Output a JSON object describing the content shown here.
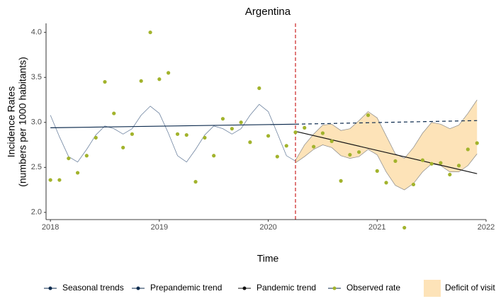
{
  "chart_data": {
    "type": "line",
    "title": "Argentina",
    "x_label": "Time",
    "y_label": [
      "Incidence Rates",
      "(numbers per 1000 habitants)"
    ],
    "xlim": [
      2017.96,
      2022.0
    ],
    "ylim": [
      1.92,
      4.1
    ],
    "xticks": [
      2018,
      2019,
      2020,
      2021,
      2022
    ],
    "yticks": [
      {
        "value": 2.0,
        "label": "2.0"
      },
      2.5,
      {
        "value": 3.0,
        "label": "3.0"
      },
      3.5,
      {
        "value": 4.0,
        "label": "4.0"
      }
    ],
    "grid": false,
    "vline": {
      "x": 2020.25,
      "color": "#cc2222"
    },
    "series": [
      {
        "name": "Seasonal trends",
        "type": "line",
        "color": "#6f84a0",
        "legend_color": "#0d2b4e",
        "x": [
          2018.0,
          2018.083,
          2018.167,
          2018.25,
          2018.333,
          2018.417,
          2018.5,
          2018.583,
          2018.667,
          2018.75,
          2018.833,
          2018.917,
          2019.0,
          2019.083,
          2019.167,
          2019.25,
          2019.333,
          2019.417,
          2019.5,
          2019.583,
          2019.667,
          2019.75,
          2019.833,
          2019.917,
          2020.0,
          2020.083,
          2020.167,
          2020.25
        ],
        "values": [
          3.08,
          2.84,
          2.62,
          2.56,
          2.7,
          2.86,
          2.96,
          2.93,
          2.87,
          2.93,
          3.08,
          3.18,
          3.1,
          2.88,
          2.63,
          2.56,
          2.7,
          2.86,
          2.96,
          2.93,
          2.87,
          2.93,
          3.08,
          3.2,
          3.12,
          2.88,
          2.63,
          2.57
        ]
      },
      {
        "name": "Prepandemic trend",
        "type": "line",
        "color": "#0d2b4e",
        "dash_after_x": 2020.25,
        "x": [
          2018.0,
          2020.25,
          2021.917
        ],
        "values": [
          2.94,
          2.98,
          3.02
        ]
      },
      {
        "name": "Pandemic trend",
        "type": "line",
        "color": "#111111",
        "x": [
          2020.25,
          2021.917
        ],
        "values": [
          2.9,
          2.43
        ]
      },
      {
        "name": "Observed rate",
        "type": "scatter",
        "color": "#a2b32c",
        "legend_color": "#0d2b4e",
        "x": [
          2018.0,
          2018.083,
          2018.167,
          2018.25,
          2018.333,
          2018.417,
          2018.5,
          2018.583,
          2018.667,
          2018.75,
          2018.833,
          2018.917,
          2019.0,
          2019.083,
          2019.167,
          2019.25,
          2019.333,
          2019.417,
          2019.5,
          2019.583,
          2019.667,
          2019.75,
          2019.833,
          2019.917,
          2020.0,
          2020.083,
          2020.167,
          2020.25,
          2020.333,
          2020.417,
          2020.5,
          2020.583,
          2020.667,
          2020.75,
          2020.833,
          2020.917,
          2021.0,
          2021.083,
          2021.167,
          2021.25,
          2021.333,
          2021.417,
          2021.5,
          2021.583,
          2021.667,
          2021.75,
          2021.833,
          2021.917
        ],
        "values": [
          2.36,
          2.36,
          2.6,
          2.44,
          2.63,
          2.83,
          3.45,
          3.1,
          2.72,
          2.87,
          3.46,
          4.0,
          3.48,
          3.55,
          2.87,
          2.86,
          2.34,
          2.83,
          2.63,
          3.04,
          2.93,
          3.0,
          2.78,
          3.38,
          2.85,
          2.62,
          2.74,
          2.89,
          2.94,
          2.73,
          2.88,
          2.79,
          2.35,
          2.64,
          2.67,
          3.08,
          2.46,
          2.33,
          2.57,
          1.83,
          2.31,
          2.58,
          2.54,
          2.55,
          2.42,
          2.52,
          2.7,
          2.77
        ]
      }
    ],
    "band": {
      "name": "Deficit of visit",
      "color": "#fde3b8",
      "edge_color": "#8a8a8a",
      "x": [
        2020.25,
        2020.333,
        2020.417,
        2020.5,
        2020.583,
        2020.667,
        2020.75,
        2020.833,
        2020.917,
        2021.0,
        2021.083,
        2021.167,
        2021.25,
        2021.333,
        2021.417,
        2021.5,
        2021.583,
        2021.667,
        2021.75,
        2021.833,
        2021.917
      ],
      "upper": [
        2.58,
        2.75,
        2.87,
        2.97,
        2.98,
        2.91,
        2.93,
        3.02,
        3.12,
        3.05,
        2.85,
        2.65,
        2.6,
        2.72,
        2.88,
        3.0,
        2.98,
        2.93,
        2.97,
        3.1,
        3.25
      ],
      "lower": [
        2.55,
        2.62,
        2.7,
        2.75,
        2.72,
        2.63,
        2.6,
        2.62,
        2.7,
        2.64,
        2.45,
        2.3,
        2.25,
        2.32,
        2.45,
        2.54,
        2.52,
        2.45,
        2.45,
        2.52,
        2.65
      ]
    }
  }
}
